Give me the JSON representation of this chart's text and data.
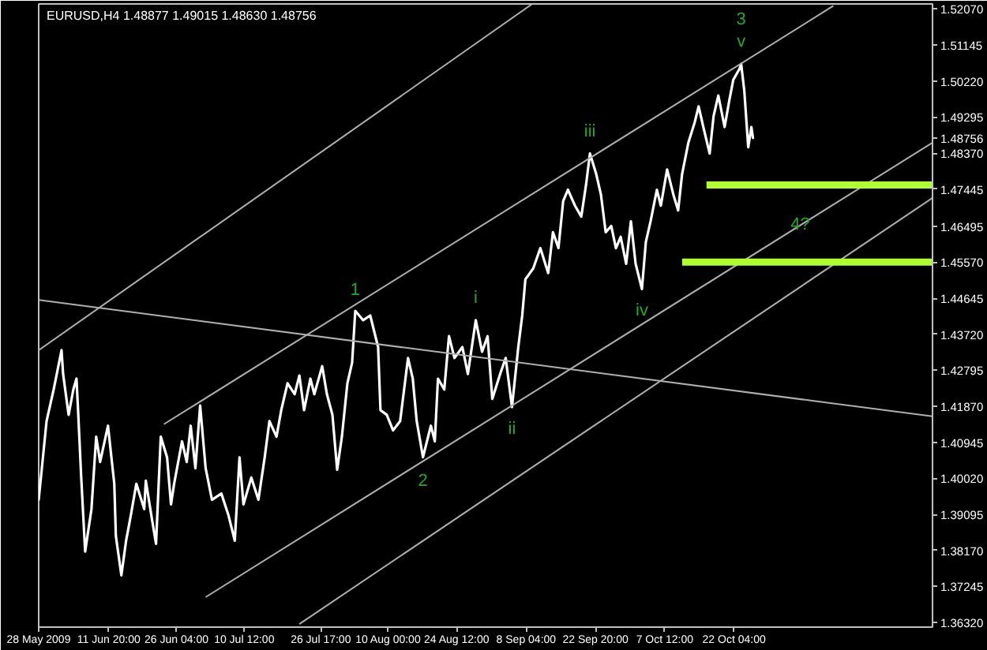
{
  "chart_data": {
    "type": "line",
    "title": "EURUSD,H4 1.48877 1.49015 1.48630 1.48756",
    "xlim": [
      "2009-05-28T00:00",
      "2009-12-03T04:00"
    ],
    "ylim": [
      1.362,
      1.522
    ],
    "xticks": [
      {
        "value": "2009-05-28T00:00",
        "label": "28 May 2009"
      },
      {
        "value": "2009-06-11T20:00",
        "label": "11 Jun 20:00"
      },
      {
        "value": "2009-06-26T04:00",
        "label": "26 Jun 04:00"
      },
      {
        "value": "2009-07-10T12:00",
        "label": "10 Jul 12:00"
      },
      {
        "value": "2009-07-26T17:00",
        "label": "26 Jul 17:00"
      },
      {
        "value": "2009-08-10T00:00",
        "label": "10 Aug 00:00"
      },
      {
        "value": "2009-08-24T12:00",
        "label": "24 Aug 12:00"
      },
      {
        "value": "2009-09-08T04:00",
        "label": "8 Sep 04:00"
      },
      {
        "value": "2009-09-22T20:00",
        "label": "22 Sep 20:00"
      },
      {
        "value": "2009-10-07T12:00",
        "label": "7 Oct 12:00"
      },
      {
        "value": "2009-10-22T04:00",
        "label": "22 Oct 04:00"
      }
    ],
    "yticks": [
      {
        "value": 1.5207,
        "label": "1.52070"
      },
      {
        "value": 1.51145,
        "label": "1.51145"
      },
      {
        "value": 1.5022,
        "label": "1.50220"
      },
      {
        "value": 1.49295,
        "label": "1.49295"
      },
      {
        "value": 1.48756,
        "label": "1.48756"
      },
      {
        "value": 1.4837,
        "label": "1.48370"
      },
      {
        "value": 1.47445,
        "label": "1.47445"
      },
      {
        "value": 1.46495,
        "label": "1.46495"
      },
      {
        "value": 1.4557,
        "label": "1.45570"
      },
      {
        "value": 1.44645,
        "label": "1.44645"
      },
      {
        "value": 1.4372,
        "label": "1.43720"
      },
      {
        "value": 1.42795,
        "label": "1.42795"
      },
      {
        "value": 1.4187,
        "label": "1.41870"
      },
      {
        "value": 1.40945,
        "label": "1.40945"
      },
      {
        "value": 1.4002,
        "label": "1.40020"
      },
      {
        "value": 1.39095,
        "label": "1.39095"
      },
      {
        "value": 1.3817,
        "label": "1.38170"
      },
      {
        "value": 1.37245,
        "label": "1.37245"
      },
      {
        "value": 1.3632,
        "label": "1.36320"
      }
    ],
    "series": [
      {
        "color": "#ffffff",
        "x": [
          "2009-05-28T00:00",
          "2009-05-29T16:00",
          "2009-05-31T04:00",
          "2009-06-01T20:00",
          "2009-06-02T04:00",
          "2009-06-03T08:00",
          "2009-06-04T08:00",
          "2009-06-05T00:00",
          "2009-06-05T08:00",
          "2009-06-06T00:00",
          "2009-06-06T20:00",
          "2009-06-08T04:00",
          "2009-06-09T04:00",
          "2009-06-10T00:00",
          "2009-06-11T16:00",
          "2009-06-13T00:00",
          "2009-06-13T08:00",
          "2009-06-14T12:00",
          "2009-06-15T12:00",
          "2009-06-16T12:00",
          "2009-06-17T16:00",
          "2009-06-19T08:00",
          "2009-06-19T16:00",
          "2009-06-21T00:00",
          "2009-06-21T20:00",
          "2009-06-22T20:00",
          "2009-06-24T04:00",
          "2009-06-25T00:00",
          "2009-06-25T16:00",
          "2009-06-27T08:00",
          "2009-06-28T08:00",
          "2009-06-29T04:00",
          "2009-06-30T04:00",
          "2009-07-01T04:00",
          "2009-07-02T08:00",
          "2009-07-03T16:00",
          "2009-07-05T16:00",
          "2009-07-07T04:00",
          "2009-07-08T12:00",
          "2009-07-09T12:00",
          "2009-07-10T08:00",
          "2009-07-12T00:00",
          "2009-07-13T12:00",
          "2009-07-14T20:00",
          "2009-07-15T20:00",
          "2009-07-17T08:00",
          "2009-07-18T08:00",
          "2009-07-19T16:00",
          "2009-07-21T04:00",
          "2009-07-22T04:00",
          "2009-07-23T04:00",
          "2009-07-24T12:00",
          "2009-07-25T08:00",
          "2009-07-27T00:00",
          "2009-07-28T00:00",
          "2009-07-29T04:00",
          "2009-07-30T04:00",
          "2009-07-31T04:00",
          "2009-08-01T08:00",
          "2009-08-02T08:00",
          "2009-08-03T00:00",
          "2009-08-04T16:00",
          "2009-08-06T04:00",
          "2009-08-07T20:00",
          "2009-08-08T08:00",
          "2009-08-09T16:00",
          "2009-08-11T00:00",
          "2009-08-12T12:00",
          "2009-08-14T04:00",
          "2009-08-15T04:00",
          "2009-08-16T00:00",
          "2009-08-17T08:00",
          "2009-08-19T00:00",
          "2009-08-19T20:00",
          "2009-08-20T12:00",
          "2009-08-21T20:00",
          "2009-08-22T20:00",
          "2009-08-24T00:00",
          "2009-08-25T16:00",
          "2009-08-26T20:00",
          "2009-08-28T12:00",
          "2009-08-29T20:00",
          "2009-08-31T00:00",
          "2009-09-01T00:00",
          "2009-09-02T16:00",
          "2009-09-03T20:00",
          "2009-09-05T04:00",
          "2009-09-06T12:00",
          "2009-09-07T08:00",
          "2009-09-08T00:00",
          "2009-09-09T16:00",
          "2009-09-11T04:00",
          "2009-09-12T20:00",
          "2009-09-13T20:00",
          "2009-09-15T00:00",
          "2009-09-16T00:00",
          "2009-09-17T00:00",
          "2009-09-18T12:00",
          "2009-09-19T20:00",
          "2009-09-20T20:00",
          "2009-09-21T16:00",
          "2009-09-23T00:00",
          "2009-09-24T00:00",
          "2009-09-25T00:00",
          "2009-09-26T04:00",
          "2009-09-27T04:00",
          "2009-09-28T04:00",
          "2009-09-29T08:00",
          "2009-09-30T08:00",
          "2009-10-01T08:00",
          "2009-10-02T16:00",
          "2009-10-03T12:00",
          "2009-10-04T12:00",
          "2009-10-05T20:00",
          "2009-10-06T16:00",
          "2009-10-08T00:00",
          "2009-10-09T08:00",
          "2009-10-10T08:00",
          "2009-10-11T04:00",
          "2009-10-12T12:00",
          "2009-10-13T20:00",
          "2009-10-14T16:00",
          "2009-10-15T16:00",
          "2009-10-17T00:00",
          "2009-10-17T20:00",
          "2009-10-18T20:00",
          "2009-10-20T04:00",
          "2009-10-21T04:00",
          "2009-10-22T00:00",
          "2009-10-23T08:00",
          "2009-10-23T16:00",
          "2009-10-24T08:00",
          "2009-10-25T04:00",
          "2009-10-25T20:00",
          "2009-10-26T04:00"
        ],
        "values": [
          1.3947,
          1.4149,
          1.423,
          1.4331,
          1.427,
          1.4165,
          1.423,
          1.4258,
          1.4177,
          1.4004,
          1.3814,
          1.3923,
          1.4109,
          1.4044,
          1.4137,
          1.3988,
          1.3854,
          1.3753,
          1.3842,
          1.3907,
          1.3988,
          1.3923,
          1.3996,
          1.3895,
          1.3834,
          1.4109,
          1.4056,
          1.3935,
          1.3988,
          1.4097,
          1.4044,
          1.4137,
          1.4028,
          1.4189,
          1.4028,
          1.3947,
          1.3963,
          1.3907,
          1.3842,
          1.4056,
          1.3935,
          1.4004,
          1.3947,
          1.4056,
          1.4149,
          1.4109,
          1.4177,
          1.4246,
          1.4218,
          1.4266,
          1.4177,
          1.4258,
          1.4218,
          1.429,
          1.4218,
          1.4165,
          1.4024,
          1.4109,
          1.4246,
          1.4299,
          1.4432,
          1.4408,
          1.442,
          1.4339,
          1.4177,
          1.4165,
          1.4125,
          1.4149,
          1.4311,
          1.4258,
          1.4149,
          1.4056,
          1.4137,
          1.4097,
          1.4258,
          1.423,
          1.4367,
          1.4311,
          1.4339,
          1.427,
          1.4408,
          1.4327,
          1.4367,
          1.4206,
          1.427,
          1.4311,
          1.4185,
          1.4339,
          1.442,
          1.4513,
          1.4541,
          1.4593,
          1.4529,
          1.4634,
          1.4593,
          1.4714,
          1.4743,
          1.4702,
          1.4674,
          1.4755,
          1.4836,
          1.4783,
          1.473,
          1.4634,
          1.465,
          1.4593,
          1.4622,
          1.4553,
          1.4662,
          1.4553,
          1.4488,
          1.4609,
          1.4662,
          1.4743,
          1.4702,
          1.4795,
          1.473,
          1.469,
          1.4783,
          1.4864,
          1.4916,
          1.4957,
          1.4904,
          1.4836,
          1.4932,
          1.4985,
          1.4904,
          1.4973,
          1.5025,
          1.5054,
          1.5066,
          1.4997,
          1.4852,
          1.4904,
          1.4876
        ]
      },
      {
        "color": "#b0b0b0",
        "x": [
          "2009-05-28T00:00",
          "2009-09-09T08:00"
        ],
        "values": [
          1.4331,
          1.5219
        ]
      },
      {
        "color": "#b0b0b0",
        "x": [
          "2009-06-23T12:00",
          "2009-11-12T04:00"
        ],
        "values": [
          1.4141,
          1.5215
        ]
      },
      {
        "color": "#b0b0b0",
        "x": [
          "2009-07-02T08:00",
          "2009-12-03T04:00"
        ],
        "values": [
          1.3697,
          1.4864
        ]
      },
      {
        "color": "#b0b0b0",
        "x": [
          "2009-07-22T04:00",
          "2009-12-03T04:00"
        ],
        "values": [
          1.3628,
          1.4722
        ]
      },
      {
        "color": "#b0b0b0",
        "x": [
          "2009-05-28T00:00",
          "2009-12-03T04:00"
        ],
        "values": [
          1.446,
          1.4161
        ]
      },
      {
        "color": "#adff2f",
        "x": [
          "2009-10-16T08:00",
          "2009-12-03T04:00"
        ],
        "values": [
          1.4755,
          1.4755
        ]
      },
      {
        "color": "#adff2f",
        "x": [
          "2009-10-11T04:00",
          "2009-12-03T04:00"
        ],
        "values": [
          1.4557,
          1.4557
        ]
      }
    ],
    "annotations": [
      {
        "text": "1",
        "x": "2009-08-03T00:00",
        "y": 1.4432
      },
      {
        "text": "2",
        "x": "2009-08-17T08:00",
        "y": 1.4056
      },
      {
        "text": "i",
        "x": "2009-08-28T12:00",
        "y": 1.4408
      },
      {
        "text": "ii",
        "x": "2009-09-05T04:00",
        "y": 1.4185
      },
      {
        "text": "iii",
        "x": "2009-09-21T16:00",
        "y": 1.4836
      },
      {
        "text": "iv",
        "x": "2009-10-02T16:00",
        "y": 1.4488
      },
      {
        "text": "v",
        "x": "2009-10-23T16:00",
        "y": 1.5066
      },
      {
        "text": "3",
        "x": "2009-10-23T16:00",
        "y": 1.5066
      },
      {
        "text": "4?",
        "x": "2009-11-05T04:00",
        "y": 1.4652
      }
    ]
  }
}
